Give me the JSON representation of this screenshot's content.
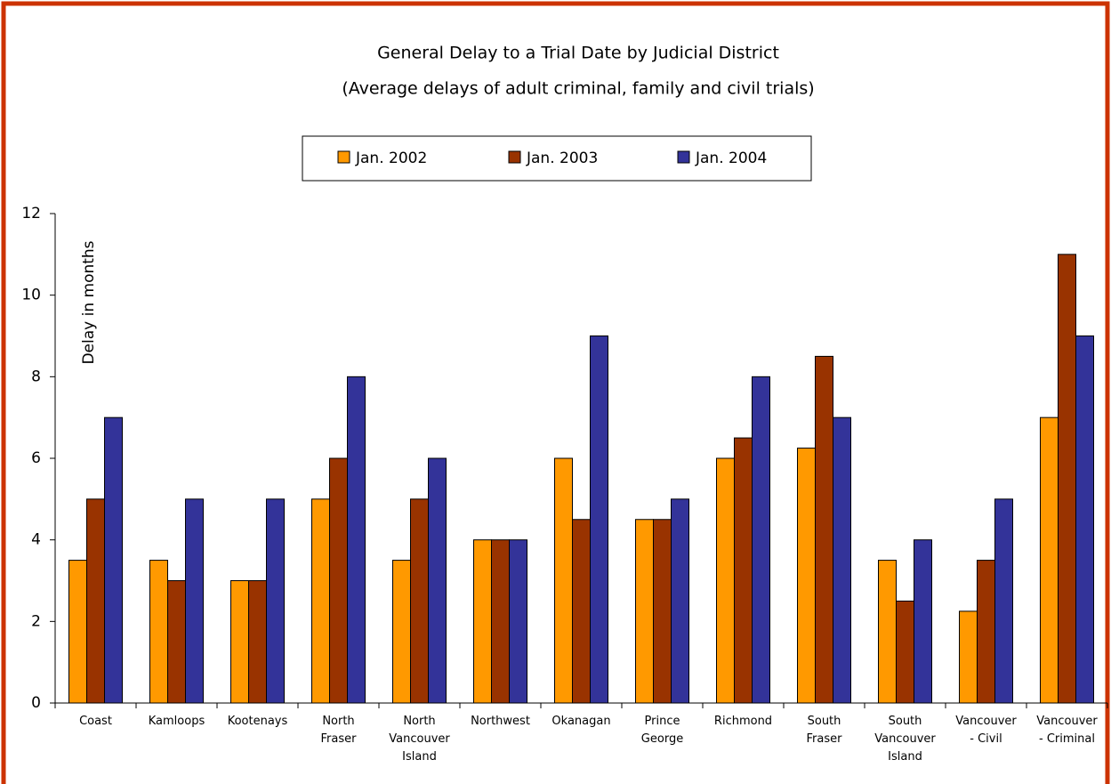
{
  "chart_data": {
    "type": "bar",
    "title": "General Delay to a Trial Date by Judicial District",
    "subtitle": "(Average delays of adult criminal, family and civil trials)",
    "y_label": "Delay in months",
    "categories": [
      "Coast",
      "Kamloops",
      "Kootenays",
      "North\nFraser",
      "North\nVancouver\nIsland",
      "Northwest",
      "Okanagan",
      "Prince\nGeorge",
      "Richmond",
      "South\nFraser",
      "South\nVancouver\nIsland",
      "Vancouver\n- Civil",
      "Vancouver\n- Criminal"
    ],
    "series": [
      {
        "name": "Jan. 2002",
        "color": "#ff9900",
        "values": [
          3.5,
          3.5,
          3,
          5,
          3.5,
          4,
          6,
          4.5,
          6,
          6.25,
          3.5,
          2.25,
          7
        ]
      },
      {
        "name": "Jan. 2003",
        "color": "#993300",
        "values": [
          5,
          3,
          3,
          6,
          5,
          4,
          4.5,
          4.5,
          6.5,
          8.5,
          2.5,
          3.5,
          11
        ]
      },
      {
        "name": "Jan. 2004",
        "color": "#333399",
        "values": [
          7,
          5,
          5,
          8,
          6,
          4,
          9,
          5,
          8,
          7,
          4,
          5,
          9
        ]
      }
    ],
    "ylim": [
      0,
      12
    ],
    "yticks": [
      0,
      2,
      4,
      6,
      8,
      10,
      12
    ],
    "grid": false,
    "legend": "top"
  }
}
